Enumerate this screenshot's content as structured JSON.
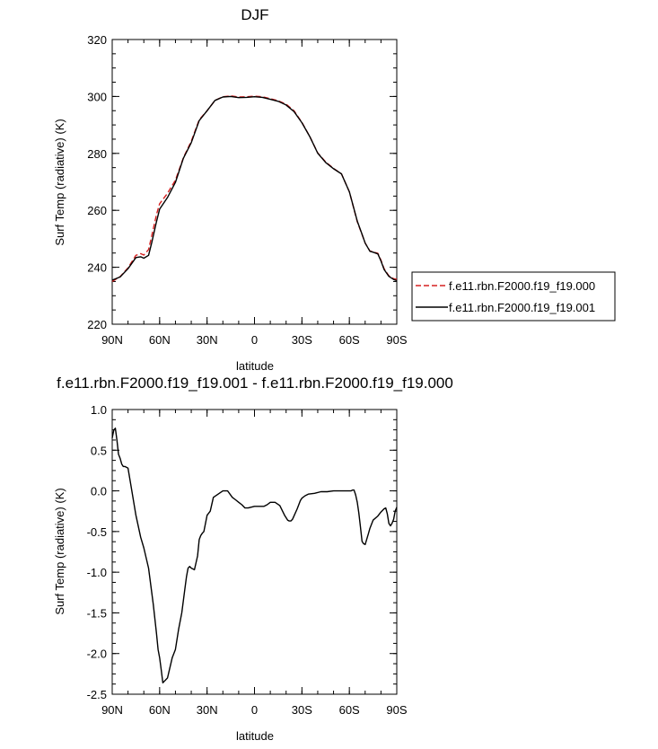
{
  "chart_data": [
    {
      "type": "line",
      "title": "DJF",
      "xlabel": "latitude",
      "ylabel": "Surf Temp (radiative) (K)",
      "xlim": [
        90,
        -90
      ],
      "ylim": [
        220,
        320
      ],
      "y_ticks": [
        220,
        240,
        260,
        280,
        300,
        320
      ],
      "x_ticks": [
        {
          "value": 90,
          "label": "90N"
        },
        {
          "value": 60,
          "label": "60N"
        },
        {
          "value": 30,
          "label": "30N"
        },
        {
          "value": 0,
          "label": "0"
        },
        {
          "value": -30,
          "label": "30S"
        },
        {
          "value": -60,
          "label": "60S"
        },
        {
          "value": -90,
          "label": "90S"
        }
      ],
      "legend": "right",
      "series": [
        {
          "name": "f.e11.rbn.F2000.f19_f19.000",
          "color": "#d62020",
          "style": "dashed",
          "x": [
            90,
            85,
            80,
            75,
            72,
            70,
            67,
            65,
            62,
            60,
            55,
            50,
            45,
            40,
            35,
            30,
            25,
            20,
            15,
            10,
            5,
            0,
            -5,
            -10,
            -15,
            -20,
            -25,
            -30,
            -35,
            -40,
            -45,
            -50,
            -55,
            -60,
            -65,
            -68,
            -70,
            -73,
            -75,
            -78,
            -80,
            -82,
            -85,
            -88,
            -90
          ],
          "y": [
            235.0,
            236.7,
            239.8,
            244.2,
            244.8,
            244.3,
            246.2,
            251.0,
            258.5,
            262.3,
            266.0,
            270.6,
            278.5,
            284.3,
            291.8,
            295.0,
            298.6,
            299.9,
            300.2,
            299.8,
            299.9,
            300.1,
            299.9,
            299.2,
            298.5,
            297.3,
            295.0,
            290.9,
            285.9,
            280.2,
            277.0,
            274.7,
            272.8,
            266.5,
            256.0,
            251.5,
            248.5,
            245.7,
            245.4,
            244.9,
            242.5,
            239.5,
            237.0,
            236.0,
            235.8
          ]
        },
        {
          "name": "f.e11.rbn.F2000.f19_f19.001",
          "color": "#000000",
          "style": "solid",
          "x": [
            90,
            85,
            80,
            75,
            72,
            70,
            67,
            65,
            62,
            60,
            55,
            50,
            45,
            40,
            35,
            30,
            25,
            20,
            15,
            10,
            5,
            0,
            -5,
            -10,
            -15,
            -20,
            -25,
            -30,
            -35,
            -40,
            -45,
            -50,
            -55,
            -60,
            -65,
            -68,
            -70,
            -73,
            -75,
            -78,
            -80,
            -82,
            -85,
            -88,
            -90
          ],
          "y": [
            235.5,
            236.6,
            239.5,
            243.4,
            243.7,
            243.2,
            244.2,
            248.6,
            256.0,
            260.4,
            264.5,
            269.8,
            278.3,
            283.8,
            291.5,
            295.0,
            298.6,
            299.8,
            300.0,
            299.6,
            299.7,
            299.9,
            299.7,
            299.0,
            298.3,
            297.0,
            294.7,
            290.8,
            285.9,
            280.1,
            276.8,
            274.6,
            272.8,
            266.5,
            256.2,
            251.6,
            248.5,
            245.6,
            245.3,
            244.7,
            242.2,
            239.2,
            236.8,
            235.7,
            235.3
          ]
        }
      ]
    },
    {
      "type": "line",
      "title": "f.e11.rbn.F2000.f19_f19.001 - f.e11.rbn.F2000.f19_f19.000",
      "xlabel": "latitude",
      "ylabel": "Surf Temp (radiative) (K)",
      "xlim": [
        90,
        -90
      ],
      "ylim": [
        -2.5,
        1.0
      ],
      "y_ticks": [
        -2.5,
        -2.0,
        -1.5,
        -1.0,
        -0.5,
        0.0,
        0.5,
        1.0
      ],
      "x_ticks": [
        {
          "value": 90,
          "label": "90N"
        },
        {
          "value": 60,
          "label": "60N"
        },
        {
          "value": 30,
          "label": "30N"
        },
        {
          "value": 0,
          "label": "0"
        },
        {
          "value": -30,
          "label": "30S"
        },
        {
          "value": -60,
          "label": "60S"
        },
        {
          "value": -90,
          "label": "90S"
        }
      ],
      "series": [
        {
          "color": "#000000",
          "style": "solid",
          "x": [
            90,
            89,
            88,
            87,
            86,
            85,
            84,
            83,
            82,
            80,
            78,
            75,
            72,
            70,
            67,
            64,
            62,
            61,
            60,
            59,
            58,
            55,
            52,
            50,
            48,
            46,
            44,
            43,
            42,
            41,
            40,
            38,
            36,
            35,
            34,
            33,
            32,
            30,
            28,
            26,
            23,
            20,
            17,
            14,
            12,
            10,
            8,
            6,
            4,
            2,
            0,
            -2,
            -4,
            -6,
            -8,
            -10,
            -13,
            -16,
            -19,
            -21,
            -22,
            -23,
            -24,
            -25,
            -27,
            -29,
            -30,
            -32,
            -34,
            -38,
            -42,
            -46,
            -50,
            -54,
            -58,
            -61,
            -62,
            -63,
            -64,
            -65,
            -66,
            -67,
            -68,
            -69,
            -70,
            -72,
            -73,
            -75,
            -78,
            -80,
            -82,
            -83,
            -84,
            -85,
            -86,
            -87,
            -88,
            -89,
            -90
          ],
          "y": [
            0.65,
            0.75,
            0.77,
            0.62,
            0.45,
            0.4,
            0.33,
            0.3,
            0.3,
            0.28,
            0.05,
            -0.3,
            -0.57,
            -0.7,
            -0.95,
            -1.4,
            -1.75,
            -1.95,
            -2.05,
            -2.2,
            -2.36,
            -2.3,
            -2.05,
            -1.95,
            -1.7,
            -1.5,
            -1.2,
            -1.05,
            -0.95,
            -0.93,
            -0.95,
            -0.97,
            -0.8,
            -0.6,
            -0.55,
            -0.52,
            -0.5,
            -0.3,
            -0.25,
            -0.08,
            -0.04,
            -0.0,
            0.0,
            -0.08,
            -0.11,
            -0.14,
            -0.17,
            -0.21,
            -0.21,
            -0.2,
            -0.19,
            -0.19,
            -0.19,
            -0.19,
            -0.17,
            -0.14,
            -0.14,
            -0.18,
            -0.3,
            -0.36,
            -0.37,
            -0.37,
            -0.35,
            -0.31,
            -0.22,
            -0.12,
            -0.09,
            -0.06,
            -0.04,
            -0.03,
            -0.01,
            -0.01,
            -0.0,
            0.0,
            0.0,
            0.0,
            0.01,
            0.01,
            -0.05,
            -0.14,
            -0.27,
            -0.44,
            -0.62,
            -0.65,
            -0.66,
            -0.53,
            -0.46,
            -0.36,
            -0.31,
            -0.26,
            -0.22,
            -0.21,
            -0.28,
            -0.4,
            -0.43,
            -0.4,
            -0.35,
            -0.25,
            -0.2
          ]
        }
      ]
    }
  ]
}
